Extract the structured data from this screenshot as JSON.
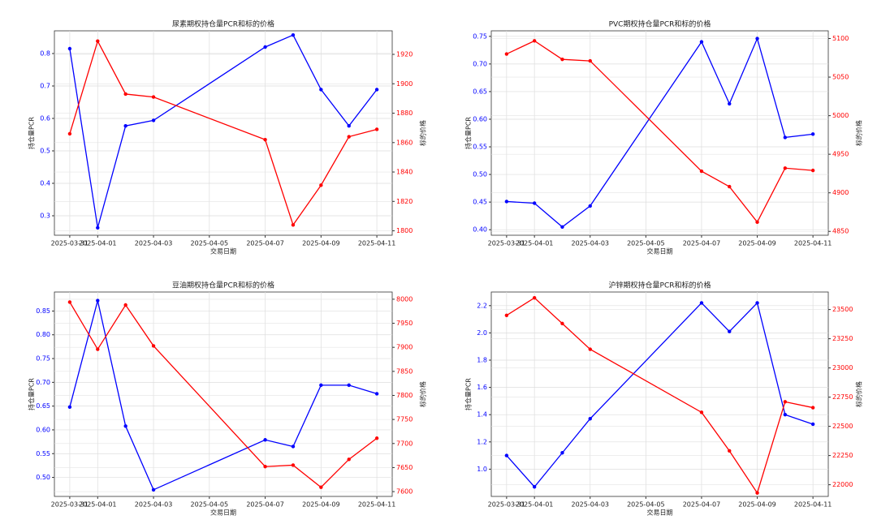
{
  "chart_data": [
    {
      "type": "line",
      "title": "尿素期权持仓量PCR和标的价格",
      "xlabel": "交易日期",
      "ylabel": "持仓量PCR",
      "y2label": "标的价格",
      "x": [
        "2025-03-31",
        "2025-04-01",
        "2025-04-02",
        "2025-04-03",
        "2025-04-07",
        "2025-04-08",
        "2025-04-09",
        "2025-04-10",
        "2025-04-11"
      ],
      "xlim": [
        "2025-03-31",
        "2025-04-11"
      ],
      "xticks": [
        "2025-03-31",
        "2025-04-01",
        "2025-04-03",
        "2025-04-05",
        "2025-04-07",
        "2025-04-09",
        "2025-04-11"
      ],
      "series": [
        {
          "color": "#0000ff",
          "values": [
            0.815,
            0.263,
            0.577,
            0.594,
            0.82,
            0.857,
            0.689,
            0.577,
            0.689
          ]
        },
        {
          "color": "#ff0000",
          "axis": "y2",
          "values": [
            1866,
            1929,
            1893,
            1891,
            1862,
            1804,
            1831,
            1864,
            1869
          ]
        }
      ],
      "ylim": [
        0.24,
        0.87
      ],
      "yticks": [
        0.3,
        0.4,
        0.5,
        0.6,
        0.7,
        0.8
      ],
      "y2lim": [
        1797,
        1936
      ],
      "y2ticks": [
        1800,
        1820,
        1840,
        1860,
        1880,
        1900,
        1920
      ],
      "grid": true
    },
    {
      "type": "line",
      "title": "PVC期权持仓量PCR和标的价格",
      "xlabel": "交易日期",
      "ylabel": "持仓量PCR",
      "y2label": "标的价格",
      "x": [
        "2025-03-31",
        "2025-04-01",
        "2025-04-02",
        "2025-04-03",
        "2025-04-07",
        "2025-04-08",
        "2025-04-09",
        "2025-04-10",
        "2025-04-11"
      ],
      "xlim": [
        "2025-03-31",
        "2025-04-11"
      ],
      "xticks": [
        "2025-03-31",
        "2025-04-01",
        "2025-04-03",
        "2025-04-05",
        "2025-04-07",
        "2025-04-09",
        "2025-04-11"
      ],
      "series": [
        {
          "color": "#0000ff",
          "values": [
            0.451,
            0.448,
            0.405,
            0.443,
            0.74,
            0.628,
            0.746,
            0.567,
            0.573
          ]
        },
        {
          "color": "#ff0000",
          "axis": "y2",
          "values": [
            5080,
            5097,
            5073,
            5071,
            4928,
            4908,
            4862,
            4932,
            4929
          ]
        }
      ],
      "ylim": [
        0.39,
        0.76
      ],
      "yticks": [
        {
          "value": 0.4,
          "label": "0.40"
        },
        0.45,
        {
          "value": 0.5,
          "label": "0.50"
        },
        0.55,
        {
          "value": 0.6,
          "label": "0.60"
        },
        0.65,
        {
          "value": 0.7,
          "label": "0.70"
        },
        0.75
      ],
      "y2lim": [
        4845,
        5110
      ],
      "y2ticks": [
        4850,
        4900,
        4950,
        5000,
        5050,
        5100
      ],
      "grid": true
    },
    {
      "type": "line",
      "title": "豆油期权持仓量PCR和标的价格",
      "xlabel": "交易日期",
      "ylabel": "持仓量PCR",
      "y2label": "标的价格",
      "x": [
        "2025-03-31",
        "2025-04-01",
        "2025-04-02",
        "2025-04-03",
        "2025-04-07",
        "2025-04-08",
        "2025-04-09",
        "2025-04-10",
        "2025-04-11"
      ],
      "xlim": [
        "2025-03-31",
        "2025-04-11"
      ],
      "xticks": [
        "2025-03-31",
        "2025-04-01",
        "2025-04-03",
        "2025-04-05",
        "2025-04-07",
        "2025-04-09",
        "2025-04-11"
      ],
      "series": [
        {
          "color": "#0000ff",
          "values": [
            0.648,
            0.872,
            0.608,
            0.474,
            0.579,
            0.565,
            0.694,
            0.694,
            0.676
          ]
        },
        {
          "color": "#ff0000",
          "axis": "y2",
          "values": [
            7994,
            7896,
            7988,
            7903,
            7652,
            7655,
            7609,
            7667,
            7711
          ]
        }
      ],
      "ylim": [
        0.46,
        0.89
      ],
      "yticks": [
        {
          "value": 0.5,
          "label": "0.50"
        },
        0.55,
        {
          "value": 0.6,
          "label": "0.60"
        },
        0.65,
        {
          "value": 0.7,
          "label": "0.70"
        },
        0.75,
        {
          "value": 0.8,
          "label": "0.80"
        },
        0.85
      ],
      "y2lim": [
        7590,
        8015
      ],
      "y2ticks": [
        7600,
        7650,
        7700,
        7750,
        7800,
        7850,
        7900,
        7950,
        8000
      ],
      "grid": true
    },
    {
      "type": "line",
      "title": "沪锌期权持仓量PCR和标的价格",
      "xlabel": "交易日期",
      "ylabel": "持仓量PCR",
      "y2label": "标的价格",
      "x": [
        "2025-03-31",
        "2025-04-01",
        "2025-04-02",
        "2025-04-03",
        "2025-04-07",
        "2025-04-08",
        "2025-04-09",
        "2025-04-10",
        "2025-04-11"
      ],
      "xlim": [
        "2025-03-31",
        "2025-04-11"
      ],
      "xticks": [
        "2025-03-31",
        "2025-04-01",
        "2025-04-03",
        "2025-04-05",
        "2025-04-07",
        "2025-04-09",
        "2025-04-11"
      ],
      "series": [
        {
          "color": "#0000ff",
          "values": [
            1.1,
            0.87,
            1.12,
            1.37,
            2.22,
            2.01,
            2.22,
            1.4,
            1.33
          ]
        },
        {
          "color": "#ff0000",
          "axis": "y2",
          "values": [
            23450,
            23600,
            23380,
            23160,
            22620,
            22290,
            21930,
            22710,
            22660
          ]
        }
      ],
      "ylim": [
        0.8,
        2.3
      ],
      "yticks": [
        {
          "value": 1,
          "label": "1.0"
        },
        1.2,
        1.4,
        1.6,
        1.8,
        {
          "value": 2,
          "label": "2.0"
        },
        2.2
      ],
      "y2lim": [
        21900,
        23650
      ],
      "y2ticks": [
        22000,
        22250,
        22500,
        22750,
        23000,
        23250,
        23500
      ],
      "grid": true
    }
  ]
}
